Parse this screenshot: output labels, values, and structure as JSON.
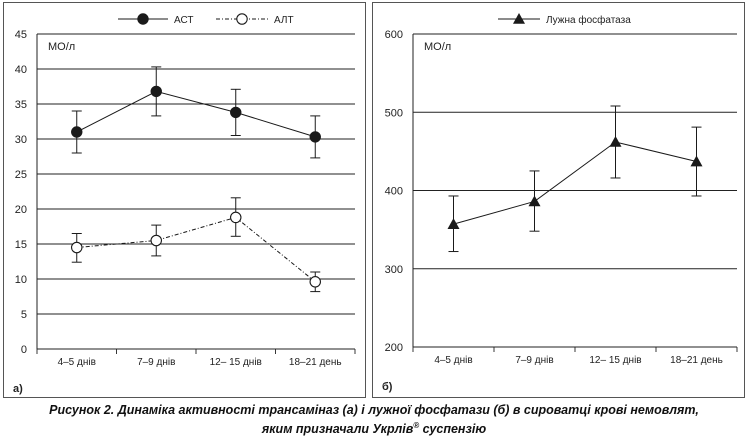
{
  "caption": {
    "line1": "Рисунок 2. Динаміка активності трансаміназ (а) і лужної фосфатази (б) в сироватці крові немовлят,",
    "line2_before": "яким призначали Укрлів",
    "line2_mark": "®",
    "line2_after": " суспензію"
  },
  "chart_data": [
    {
      "type": "line",
      "panel_label": "а)",
      "unit_label": "МО/л",
      "categories": [
        "4–5 днів",
        "7–9 днів",
        "12– 15 днів",
        "18–21 день"
      ],
      "ylim": [
        0,
        45
      ],
      "yticks": [
        0,
        5,
        10,
        15,
        20,
        25,
        30,
        35,
        40,
        45
      ],
      "grid": true,
      "legend_position": "top",
      "series": [
        {
          "name": "АСТ",
          "marker": "filled-circle",
          "line_style": "solid",
          "color": "#1a1a1a",
          "values": [
            31.0,
            36.8,
            33.8,
            30.3
          ],
          "error_low": [
            28.0,
            33.3,
            30.5,
            27.3
          ],
          "error_high": [
            34.0,
            40.3,
            37.1,
            33.3
          ]
        },
        {
          "name": "АЛТ",
          "marker": "open-circle",
          "line_style": "dash-dot",
          "color": "#1a1a1a",
          "values": [
            14.5,
            15.5,
            18.8,
            9.6
          ],
          "error_low": [
            12.4,
            13.3,
            16.1,
            8.2
          ],
          "error_high": [
            16.5,
            17.7,
            21.6,
            11.0
          ]
        }
      ]
    },
    {
      "type": "line",
      "panel_label": "б)",
      "unit_label": "МО/л",
      "categories": [
        "4–5 днів",
        "7–9 днів",
        "12– 15 днів",
        "18–21 день"
      ],
      "ylim": [
        200,
        600
      ],
      "yticks": [
        200,
        300,
        400,
        500,
        600
      ],
      "grid": true,
      "legend_position": "top",
      "series": [
        {
          "name": "Лужна фосфатаза",
          "marker": "filled-triangle",
          "line_style": "solid",
          "color": "#1a1a1a",
          "values": [
            357,
            386,
            462,
            437
          ],
          "error_low": [
            322,
            348,
            416,
            393
          ],
          "error_high": [
            393,
            425,
            508,
            481
          ]
        }
      ]
    }
  ]
}
